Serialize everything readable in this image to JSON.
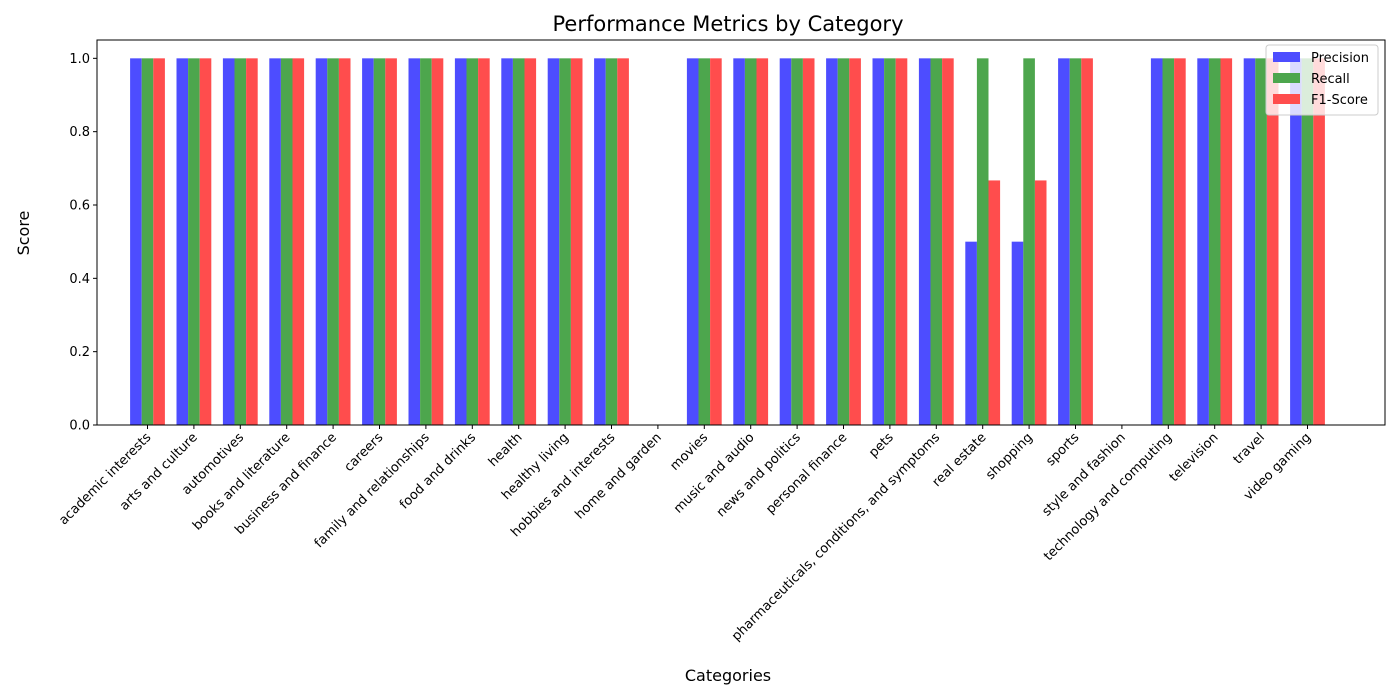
{
  "chart_data": {
    "type": "bar",
    "title": "Performance Metrics by Category",
    "xlabel": "Categories",
    "ylabel": "Score",
    "ylim": [
      0,
      1.05
    ],
    "yticks": [
      "0.0",
      "0.2",
      "0.4",
      "0.6",
      "0.8",
      "1.0"
    ],
    "legend_position": "top-right",
    "grid": false,
    "categories": [
      "academic interests",
      "arts and culture",
      "automotives",
      "books and literature",
      "business and finance",
      "careers",
      "family and relationships",
      "food and drinks",
      "health",
      "healthy living",
      "hobbies and interests",
      "home and garden",
      "movies",
      "music and audio",
      "news and politics",
      "personal finance",
      "pets",
      "pharmaceuticals, conditions, and symptoms",
      "real estate",
      "shopping",
      "sports",
      "style and fashion",
      "technology and computing",
      "television",
      "travel",
      "video gaming"
    ],
    "series": [
      {
        "name": "Precision",
        "color": "#4d4dff",
        "values": [
          1,
          1,
          1,
          1,
          1,
          1,
          1,
          1,
          1,
          1,
          1,
          0,
          1,
          1,
          1,
          1,
          1,
          1,
          0.5,
          0.5,
          1,
          0,
          1,
          1,
          1,
          1
        ]
      },
      {
        "name": "Recall",
        "color": "#4da64d",
        "values": [
          1,
          1,
          1,
          1,
          1,
          1,
          1,
          1,
          1,
          1,
          1,
          0,
          1,
          1,
          1,
          1,
          1,
          1,
          1,
          1,
          1,
          0,
          1,
          1,
          1,
          1
        ]
      },
      {
        "name": "F1-Score",
        "color": "#ff4d4d",
        "values": [
          1,
          1,
          1,
          1,
          1,
          1,
          1,
          1,
          1,
          1,
          1,
          0,
          1,
          1,
          1,
          1,
          1,
          1,
          0.667,
          0.667,
          1,
          0,
          1,
          1,
          1,
          1
        ]
      }
    ]
  }
}
